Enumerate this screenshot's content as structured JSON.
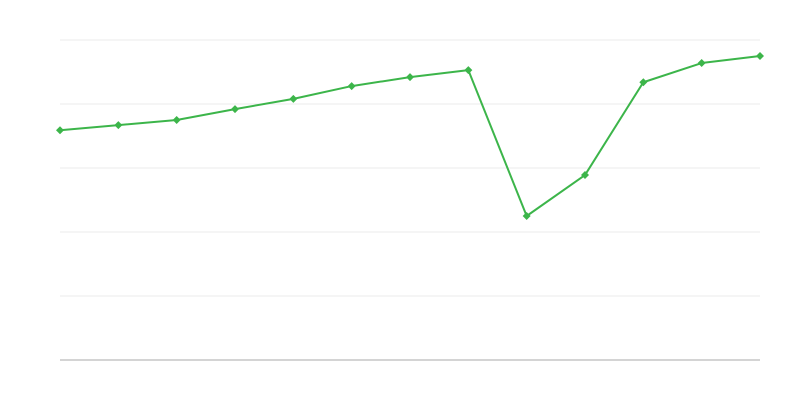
{
  "chart_data": {
    "type": "line",
    "title": "",
    "xlabel": "",
    "ylabel": "",
    "x": [
      1,
      2,
      3,
      4,
      5,
      6,
      7,
      8,
      9,
      10,
      11,
      12,
      13
    ],
    "ylim": [
      0,
      5
    ],
    "grid": true,
    "legend": "none",
    "series": [
      {
        "values": [
          3.59,
          3.67,
          3.75,
          3.92,
          4.08,
          4.28,
          4.42,
          4.53,
          2.25,
          2.89,
          4.34,
          4.64,
          4.75
        ],
        "color": "#3cb54a",
        "marker": "diamond"
      }
    ],
    "colors": {
      "grid": "#ebebeb",
      "axis": "#aaaaaa"
    }
  }
}
